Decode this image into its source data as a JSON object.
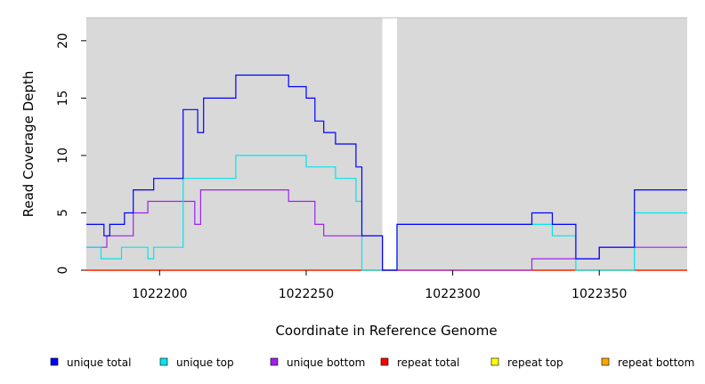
{
  "chart_data": {
    "type": "line",
    "step": true,
    "xlabel": "Coordinate in Reference Genome",
    "ylabel": "Read Coverage Depth",
    "xlim": [
      1022175,
      1022380
    ],
    "ylim": [
      0,
      22
    ],
    "xticks": [
      1022200,
      1022250,
      1022300,
      1022350
    ],
    "yticks": [
      0,
      5,
      10,
      15,
      20
    ],
    "background_color": "#d9d9d9",
    "gap": [
      1022276,
      1022281
    ],
    "legend_placement": "bottom",
    "series": [
      {
        "name": "unique total",
        "color": "#0000ff",
        "x": [
          1022175,
          1022181,
          1022183,
          1022188,
          1022191,
          1022198,
          1022208,
          1022213,
          1022215,
          1022226,
          1022244,
          1022250,
          1022253,
          1022256,
          1022260,
          1022267,
          1022269,
          1022276,
          1022281,
          1022327,
          1022334,
          1022342,
          1022350,
          1022362
        ],
        "y": [
          4,
          3,
          4,
          5,
          7,
          8,
          14,
          12,
          15,
          17,
          16,
          15,
          13,
          12,
          11,
          9,
          3,
          0,
          4,
          5,
          4,
          1,
          2,
          7
        ],
        "x_end": 1022380
      },
      {
        "name": "unique top",
        "color": "#00e5ee",
        "x": [
          1022175,
          1022180,
          1022187,
          1022196,
          1022198,
          1022208,
          1022226,
          1022250,
          1022260,
          1022267,
          1022269,
          1022281,
          1022334,
          1022342,
          1022362
        ],
        "y": [
          2,
          1,
          2,
          1,
          2,
          8,
          10,
          9,
          8,
          6,
          0,
          4,
          3,
          0,
          5
        ],
        "x_end": 1022380
      },
      {
        "name": "unique bottom",
        "color": "#a020f0",
        "x": [
          1022175,
          1022182,
          1022191,
          1022196,
          1022212,
          1022214,
          1022244,
          1022253,
          1022256,
          1022269,
          1022276,
          1022327,
          1022342,
          1022350
        ],
        "y": [
          2,
          3,
          5,
          6,
          4,
          7,
          6,
          4,
          3,
          3,
          0,
          1,
          1,
          2
        ],
        "x_end": 1022380
      },
      {
        "name": "repeat total",
        "color": "#ff0000",
        "x": [
          1022175
        ],
        "y": [
          0
        ],
        "x_end": 1022380
      },
      {
        "name": "repeat top",
        "color": "#ffff00",
        "x": [
          1022175
        ],
        "y": [
          0
        ],
        "x_end": 1022380
      },
      {
        "name": "repeat bottom",
        "color": "#ffa500",
        "x": [
          1022175
        ],
        "y": [
          0
        ],
        "x_end": 1022380
      }
    ]
  }
}
